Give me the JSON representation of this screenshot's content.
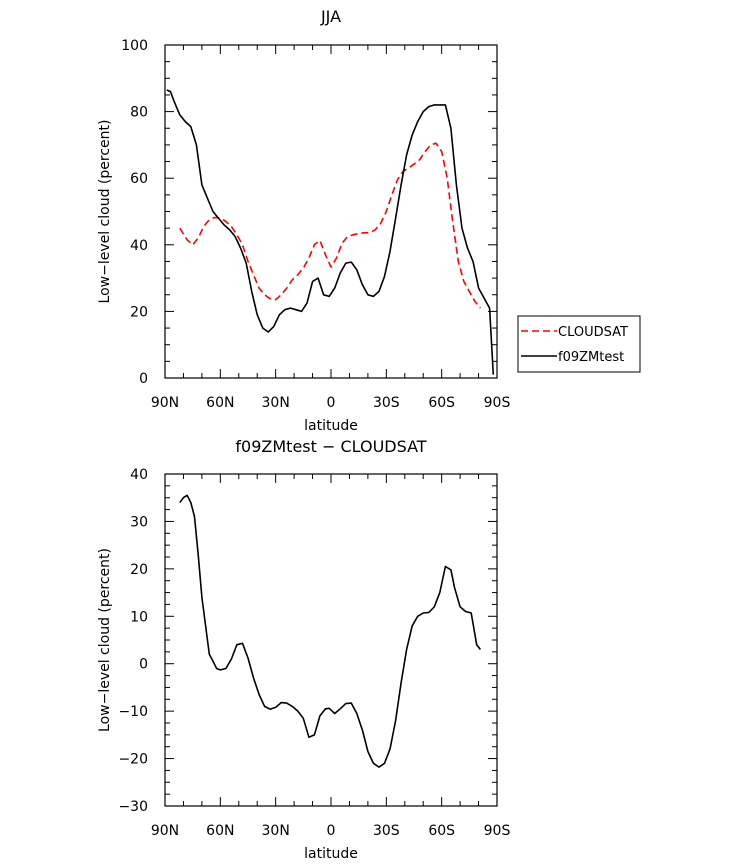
{
  "chart_data": [
    {
      "type": "line",
      "title": "JJA",
      "xlabel": "latitude",
      "ylabel": "Low−level cloud (percent)",
      "xlim": [
        90,
        -90
      ],
      "ylim": [
        0,
        100
      ],
      "x_ticks": [
        90,
        60,
        30,
        0,
        -30,
        -60,
        -90
      ],
      "x_tick_labels": [
        "90N",
        "60N",
        "30N",
        "0",
        "30S",
        "60S",
        "90S"
      ],
      "y_ticks": [
        0,
        20,
        40,
        60,
        80,
        100
      ],
      "y_tick_labels": [
        "0",
        "20",
        "40",
        "60",
        "80",
        "100"
      ],
      "grid": false,
      "legend": "outside-right",
      "series": [
        {
          "name": "CLOUDSAT",
          "color": "#ff0000",
          "dash": "dashed",
          "x": [
            82,
            78,
            75,
            72,
            69,
            66,
            63,
            60,
            57,
            54,
            51,
            48,
            45,
            42,
            39,
            36,
            33,
            30,
            27,
            24,
            21,
            18,
            15,
            12,
            9,
            6,
            3,
            0,
            -3,
            -6,
            -9,
            -12,
            -15,
            -18,
            -21,
            -24,
            -27,
            -30,
            -33,
            -36,
            -39,
            -42,
            -45,
            -48,
            -51,
            -54,
            -57,
            -60,
            -63,
            -66,
            -69,
            -72,
            -75,
            -78,
            -81
          ],
          "y": [
            45,
            41.5,
            40,
            42,
            45.5,
            47.5,
            48.2,
            48,
            47,
            45.5,
            43,
            40,
            35,
            31,
            27,
            25,
            23.8,
            23.5,
            25,
            27,
            29.5,
            31,
            33,
            36,
            40,
            41.3,
            37,
            33.3,
            36,
            40.5,
            42.5,
            43,
            43.4,
            43.6,
            43.6,
            44.5,
            46.5,
            50,
            55,
            59.5,
            62,
            63,
            64.2,
            65.5,
            68,
            70,
            70.5,
            68,
            60,
            47,
            35,
            29,
            26,
            23,
            21
          ]
        },
        {
          "name": "f09ZMtest",
          "color": "#000000",
          "dash": "solid",
          "x": [
            89,
            87,
            85,
            82,
            79,
            76,
            73,
            70,
            67,
            64,
            61,
            58,
            55,
            52,
            49,
            46,
            43,
            40,
            37,
            34,
            31,
            28,
            25,
            22,
            19,
            16,
            13,
            10,
            7,
            4,
            1,
            -2,
            -5,
            -8,
            -11,
            -14,
            -17,
            -20,
            -23,
            -26,
            -29,
            -32,
            -35,
            -38,
            -41,
            -44,
            -47,
            -50,
            -53,
            -56,
            -59,
            -62,
            -65,
            -68,
            -71,
            -74,
            -77,
            -80,
            -83,
            -86,
            -88
          ],
          "y": [
            86.5,
            86,
            83,
            79,
            77,
            75.5,
            70,
            58,
            54,
            50,
            48,
            46,
            44.5,
            42.5,
            39,
            34.5,
            26,
            19,
            15,
            13.8,
            15.5,
            19,
            20.5,
            21,
            20.5,
            20,
            22.5,
            29,
            30,
            25,
            24.5,
            27,
            31.5,
            34.5,
            34.8,
            32.5,
            28,
            25,
            24.5,
            26,
            30.5,
            38,
            48,
            58,
            67,
            73,
            77,
            80,
            81.5,
            82,
            82,
            82,
            75,
            58,
            45,
            39,
            35,
            27,
            24,
            21,
            1
          ]
        }
      ]
    },
    {
      "type": "line",
      "title": "f09ZMtest − CLOUDSAT",
      "xlabel": "latitude",
      "ylabel": "Low−level cloud (percent)",
      "xlim": [
        90,
        -90
      ],
      "ylim": [
        -30,
        40
      ],
      "x_ticks": [
        90,
        60,
        30,
        0,
        -30,
        -60,
        -90
      ],
      "x_tick_labels": [
        "90N",
        "60N",
        "30N",
        "0",
        "30S",
        "60S",
        "90S"
      ],
      "y_ticks": [
        -30,
        -20,
        -10,
        0,
        10,
        20,
        30,
        40
      ],
      "y_tick_labels": [
        "−30",
        "−20",
        "−10",
        "0",
        "10",
        "20",
        "30",
        "40"
      ],
      "grid": false,
      "series": [
        {
          "color": "#000000",
          "dash": "solid",
          "x": [
            82,
            80,
            78,
            76,
            74,
            72,
            70,
            68,
            66,
            64,
            62,
            60,
            57,
            54,
            51,
            48,
            45,
            42,
            39,
            36,
            33,
            30,
            27,
            24,
            21,
            18,
            15,
            12,
            9,
            6,
            3,
            1,
            -2,
            -5,
            -8,
            -11,
            -14,
            -17,
            -20,
            -23,
            -26,
            -29,
            -32,
            -35,
            -38,
            -41,
            -44,
            -47,
            -50,
            -53,
            -56,
            -59,
            -62,
            -65,
            -67,
            -70,
            -73,
            -76,
            -79,
            -81
          ],
          "y": [
            34,
            35,
            35.5,
            34,
            31,
            23,
            14,
            8,
            2,
            0.5,
            -1,
            -1.3,
            -1,
            1,
            4,
            4.3,
            1.2,
            -3,
            -6.5,
            -9,
            -9.6,
            -9.2,
            -8.2,
            -8.3,
            -9,
            -10,
            -11.5,
            -15.5,
            -15,
            -11,
            -9.5,
            -9.4,
            -10.5,
            -9.5,
            -8.4,
            -8.3,
            -10.5,
            -14,
            -18.5,
            -21,
            -21.8,
            -21,
            -18,
            -12,
            -4,
            3,
            8,
            10,
            10.7,
            10.8,
            12,
            15,
            20.5,
            19.8,
            16,
            12,
            11,
            10.7,
            4,
            3
          ]
        }
      ]
    }
  ]
}
